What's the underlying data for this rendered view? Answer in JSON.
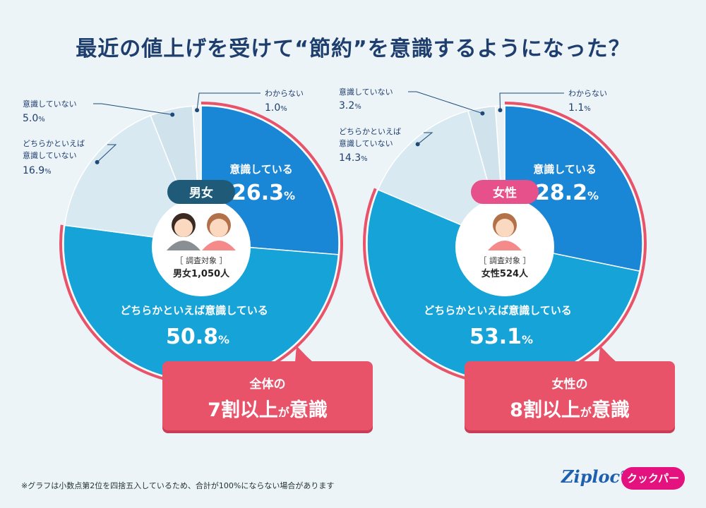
{
  "title": "最近の値上げを受けて“節約”を意識するようになった？",
  "footnote": "※グラフは小数点第2位を四捨五入しているため、合計が100%にならない場合があります",
  "logos": {
    "ziploc": "Ziploc",
    "ziploc_mark": "®",
    "cook": "クックパー"
  },
  "colors": {
    "conscious": "#1a86d6",
    "somewhat_conscious": "#16a3d8",
    "somewhat_not": "#d8e9f1",
    "not": "#d0e3ec",
    "unknown": "#ebf2f6",
    "accent": "#e9536a"
  },
  "chart_data": [
    {
      "type": "pie",
      "badge": "男女",
      "sample_label": "［ 調査対象 ］",
      "sample": "男女1,050人",
      "slices": [
        {
          "label": "意識している",
          "value": 26.3,
          "display": "26.3"
        },
        {
          "label": "どちらかといえば意識している",
          "value": 50.8,
          "display": "50.8"
        },
        {
          "label": "どちらかといえば意識していない",
          "value": 16.9,
          "display": "16.9"
        },
        {
          "label": "意識していない",
          "value": 5.0,
          "display": "5.0"
        },
        {
          "label": "わからない",
          "value": 1.0,
          "display": "1.0"
        }
      ],
      "callout": {
        "line1": "全体の",
        "big": "7割以上",
        "small": "が",
        "end": "意識"
      }
    },
    {
      "type": "pie",
      "badge": "女性",
      "sample_label": "［ 調査対象 ］",
      "sample": "女性524人",
      "slices": [
        {
          "label": "意識している",
          "value": 28.2,
          "display": "28.2"
        },
        {
          "label": "どちらかといえば意識している",
          "value": 53.1,
          "display": "53.1"
        },
        {
          "label": "どちらかといえば意識していない",
          "value": 14.3,
          "display": "14.3"
        },
        {
          "label": "意識していない",
          "value": 3.2,
          "display": "3.2"
        },
        {
          "label": "わからない",
          "value": 1.1,
          "display": "1.1"
        }
      ],
      "callout": {
        "line1": "女性の",
        "big": "8割以上",
        "small": "が",
        "end": "意識"
      }
    }
  ]
}
